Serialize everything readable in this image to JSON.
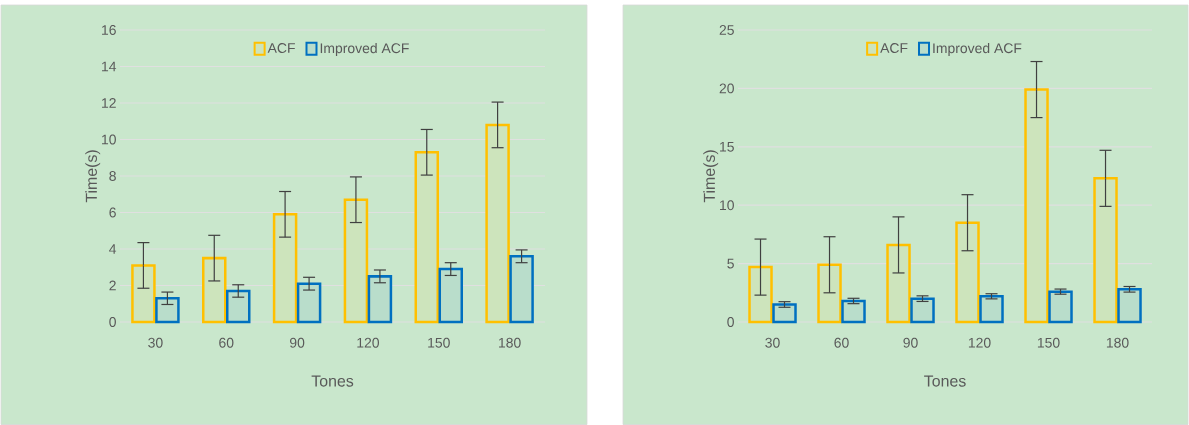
{
  "chart_data": [
    {
      "type": "bar",
      "xlabel": "Tones",
      "ylabel": "Time(s)",
      "categories": [
        "30",
        "60",
        "90",
        "120",
        "150",
        "180"
      ],
      "ylim": [
        0,
        16
      ],
      "yticks": [
        0,
        2,
        4,
        6,
        8,
        10,
        12,
        14,
        16
      ],
      "grid": "y",
      "legend": "top",
      "series": [
        {
          "name": "ACF",
          "color": "#ffc000",
          "values": [
            3.1,
            3.5,
            5.9,
            6.7,
            9.3,
            10.8
          ],
          "errors": [
            1.25,
            1.25,
            1.25,
            1.25,
            1.25,
            1.25
          ]
        },
        {
          "name": "Improved ACF",
          "color": "#0070c0",
          "values": [
            1.3,
            1.7,
            2.1,
            2.5,
            2.9,
            3.6
          ],
          "errors": [
            0.34,
            0.34,
            0.35,
            0.35,
            0.35,
            0.35
          ]
        }
      ]
    },
    {
      "type": "bar",
      "xlabel": "Tones",
      "ylabel": "Time(s)",
      "categories": [
        "30",
        "60",
        "90",
        "120",
        "150",
        "180"
      ],
      "ylim": [
        0,
        25
      ],
      "yticks": [
        0,
        5,
        10,
        15,
        20,
        25
      ],
      "grid": "y",
      "legend": "top",
      "series": [
        {
          "name": "ACF",
          "color": "#ffc000",
          "values": [
            4.7,
            4.9,
            6.6,
            8.5,
            19.9,
            12.3
          ],
          "errors": [
            2.4,
            2.4,
            2.4,
            2.4,
            2.4,
            2.4
          ]
        },
        {
          "name": "Improved ACF",
          "color": "#0070c0",
          "values": [
            1.5,
            1.8,
            2.0,
            2.2,
            2.6,
            2.8
          ],
          "errors": [
            0.24,
            0.23,
            0.24,
            0.22,
            0.22,
            0.24
          ]
        }
      ]
    }
  ]
}
